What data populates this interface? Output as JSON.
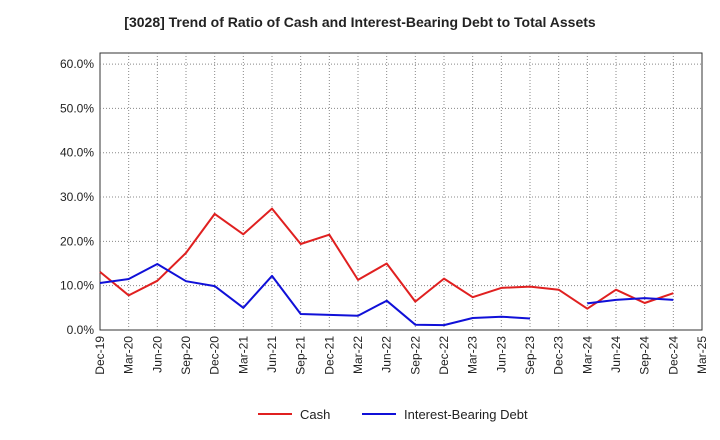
{
  "chart_data": {
    "type": "line",
    "title": "[3028]  Trend of Ratio of Cash and Interest-Bearing Debt to Total Assets",
    "xlabel": "",
    "ylabel": "",
    "categories": [
      "Dec-19",
      "Mar-20",
      "Jun-20",
      "Sep-20",
      "Dec-20",
      "Mar-21",
      "Jun-21",
      "Sep-21",
      "Dec-21",
      "Mar-22",
      "Jun-22",
      "Sep-22",
      "Dec-22",
      "Mar-23",
      "Jun-23",
      "Sep-23",
      "Dec-23",
      "Mar-24",
      "Jun-24",
      "Sep-24",
      "Dec-24",
      "Mar-25"
    ],
    "ylim": [
      0,
      0.625
    ],
    "yticks": [
      0,
      0.1,
      0.2,
      0.3,
      0.4,
      0.5,
      0.6
    ],
    "ytick_labels": [
      "0.0%",
      "10.0%",
      "20.0%",
      "30.0%",
      "40.0%",
      "50.0%",
      "60.0%"
    ],
    "grid": true,
    "legend_position": "bottom",
    "series": [
      {
        "name": "Cash",
        "color": "#e02020",
        "values": [
          0.131,
          0.078,
          0.111,
          0.174,
          0.262,
          0.216,
          0.274,
          0.194,
          0.215,
          0.113,
          0.15,
          0.064,
          0.116,
          0.074,
          0.095,
          0.098,
          0.091,
          0.048,
          0.091,
          0.061,
          0.083,
          null
        ]
      },
      {
        "name": "Interest-Bearing Debt",
        "color": "#1010d8",
        "values": [
          0.106,
          0.115,
          0.149,
          0.11,
          0.099,
          0.05,
          0.122,
          0.036,
          0.034,
          0.032,
          0.066,
          0.012,
          0.011,
          0.027,
          0.03,
          0.026,
          null,
          0.06,
          0.068,
          0.072,
          0.068,
          null
        ]
      }
    ]
  }
}
